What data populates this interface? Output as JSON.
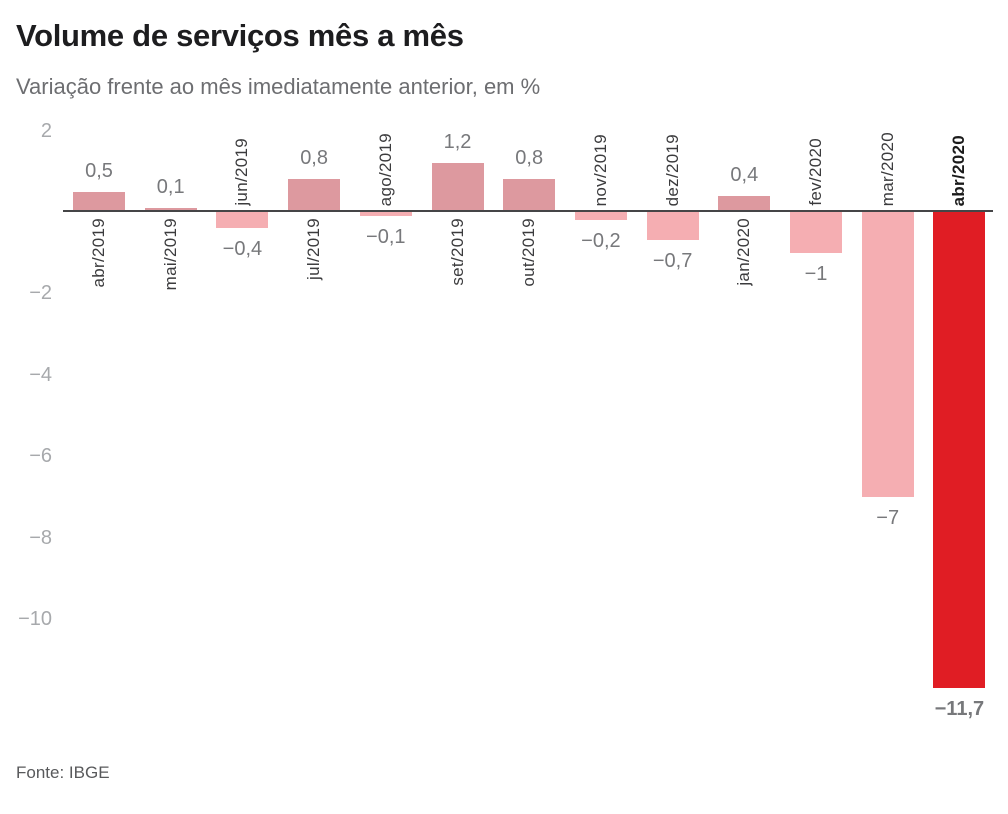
{
  "header": {
    "title": "Volume de serviços mês a mês",
    "subtitle": "Variação frente ao mês imediatamente anterior, em %"
  },
  "footer": {
    "source": "Fonte: IBGE"
  },
  "chart_data": {
    "type": "bar",
    "title": "Volume de serviços mês a mês",
    "subtitle": "Variação frente ao mês imediatamente anterior, em %",
    "unit": "%",
    "categories": [
      "abr/2019",
      "mai/2019",
      "jun/2019",
      "jul/2019",
      "ago/2019",
      "set/2019",
      "out/2019",
      "nov/2019",
      "dez/2019",
      "jan/2020",
      "fev/2020",
      "mar/2020",
      "abr/2020"
    ],
    "values": [
      0.5,
      0.1,
      -0.4,
      0.8,
      -0.1,
      1.2,
      0.8,
      -0.2,
      -0.7,
      0.4,
      -1,
      -7,
      -11.7
    ],
    "value_labels": [
      "0,5",
      "0,1",
      "−0,4",
      "0,8",
      "−0,1",
      "1,2",
      "0,8",
      "−0,2",
      "−0,7",
      "0,4",
      "−1",
      "−7",
      "−11,7"
    ],
    "highlight_category": "abr/2020",
    "yticks": [
      {
        "label": "2",
        "value": 2
      },
      {
        "label": "−2",
        "value": -2
      },
      {
        "label": "−4",
        "value": -4
      },
      {
        "label": "−6",
        "value": -6
      },
      {
        "label": "−8",
        "value": -8
      },
      {
        "label": "−10",
        "value": -10
      }
    ],
    "ylim": [
      -12.3,
      2.2
    ],
    "grid": false,
    "legend": "none",
    "source": "Fonte: IBGE",
    "colors": {
      "positive_bar": "#dd999f",
      "negative_bar": "#f5aeb2",
      "highlight_bar": "#e01d24",
      "axis_line": "#454547",
      "tick_label": "#a7a9ac",
      "value_label": "#77787b",
      "month_label": "#3b3b3d",
      "highlight_month_label": "#1b1b1b"
    }
  }
}
